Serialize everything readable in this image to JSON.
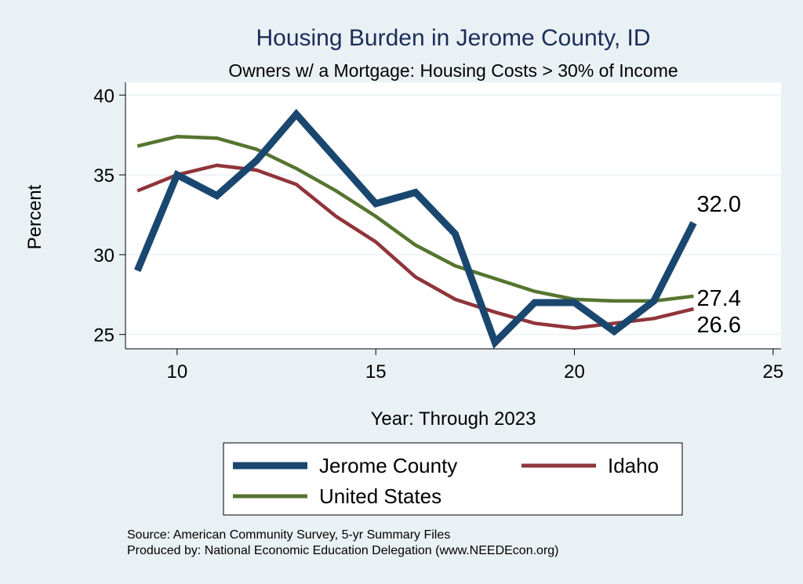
{
  "chart_data": {
    "type": "line",
    "title": "Housing Burden in Jerome County, ID",
    "subtitle": "Owners w/ a Mortgage: Housing Costs > 30% of Income",
    "xlabel": "Year: Through 2023",
    "ylabel": "Percent",
    "xlim": [
      8.7,
      25.2
    ],
    "ylim": [
      24.1,
      40.8
    ],
    "xticks": [
      "10",
      "15",
      "20",
      "25"
    ],
    "yticks": [
      "25",
      "30",
      "35",
      "40"
    ],
    "grid": true,
    "legend_placement": "bottom",
    "x": [
      9,
      10,
      11,
      12,
      13,
      14,
      15,
      16,
      17,
      18,
      19,
      20,
      21,
      22,
      23
    ],
    "series": [
      {
        "name": "Jerome County",
        "color": "#1a476f",
        "values": [
          29.0,
          35.0,
          33.7,
          35.9,
          38.8,
          36.0,
          33.2,
          33.9,
          31.3,
          24.5,
          27.0,
          27.0,
          25.2,
          27.1,
          32.0
        ],
        "end_label": "32.0"
      },
      {
        "name": "Idaho",
        "color": "#90353b",
        "values": [
          34.0,
          35.0,
          35.6,
          35.3,
          34.4,
          32.4,
          30.8,
          28.6,
          27.2,
          26.4,
          25.7,
          25.4,
          25.7,
          26.0,
          26.6
        ],
        "end_label": "26.6"
      },
      {
        "name": "United States",
        "color": "#55752f",
        "values": [
          36.8,
          37.4,
          37.3,
          36.6,
          35.4,
          34.0,
          32.4,
          30.6,
          29.3,
          28.5,
          27.7,
          27.2,
          27.1,
          27.1,
          27.4
        ],
        "end_label": "27.4"
      }
    ],
    "notes": [
      "Source: American Community Survey, 5-yr Summary Files",
      "Produced by: National Economic Education Delegation (www.NEEDEcon.org)"
    ]
  }
}
